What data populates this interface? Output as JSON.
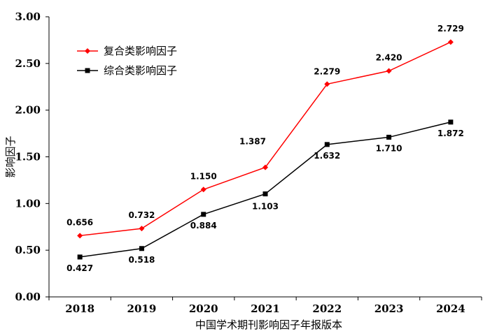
{
  "chart_data": {
    "type": "line",
    "x": [
      "2018",
      "2019",
      "2020",
      "2021",
      "2022",
      "2023",
      "2024"
    ],
    "xlabel": "中国学术期刊影响因子年报版本",
    "ylabel": "影响因子",
    "ylim": [
      0,
      3
    ],
    "yticks": [
      "0.00",
      "0.50",
      "1.00",
      "1.50",
      "2.00",
      "2.50",
      "3.00"
    ],
    "legend_position": "top-left",
    "grid": false,
    "series": [
      {
        "name": "复合类影响因子",
        "color": "#ff0000",
        "marker": "diamond",
        "values": [
          0.656,
          0.732,
          1.15,
          1.387,
          2.279,
          2.42,
          2.729
        ],
        "labels": [
          "0.656",
          "0.732",
          "1.150",
          "1.387",
          "2.279",
          "2.420",
          "2.729"
        ]
      },
      {
        "name": "综合类影响因子",
        "color": "#000000",
        "marker": "square",
        "values": [
          0.427,
          0.518,
          0.884,
          1.103,
          1.632,
          1.71,
          1.872
        ],
        "labels": [
          "0.427",
          "0.518",
          "0.884",
          "1.103",
          "1.632",
          "1.710",
          "1.872"
        ]
      }
    ]
  }
}
